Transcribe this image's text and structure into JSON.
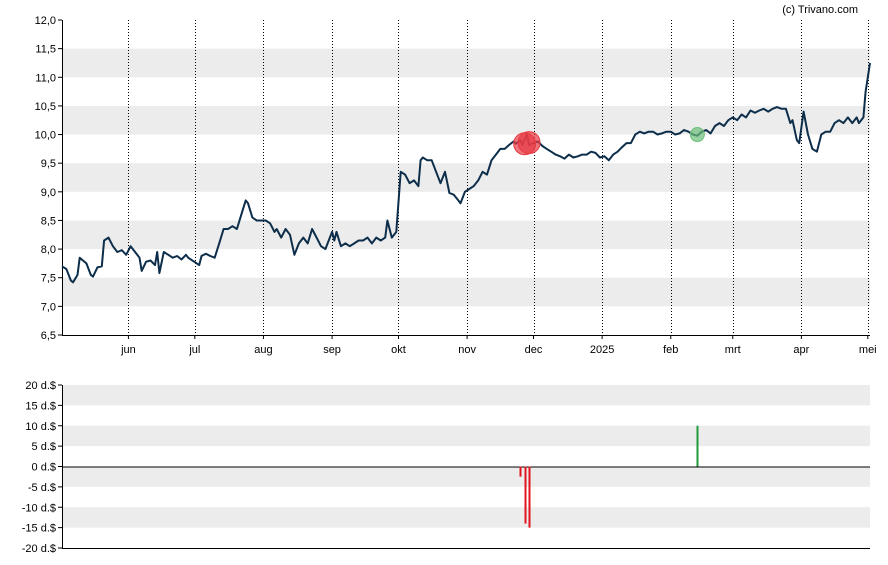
{
  "credit": "(c) Trivano.com",
  "colors": {
    "line": "#0d2e4a",
    "band": "#ececec",
    "buy": "#1e9a3a",
    "sell": "#e0141e",
    "buy_marker": "#6cbf7a",
    "sell_marker": "#e83a45"
  },
  "chart_data": [
    {
      "type": "line",
      "title": "",
      "ylim": [
        6.5,
        12.0
      ],
      "yticks": [
        "12,0",
        "11,5",
        "11,0",
        "10,5",
        "10,0",
        "9,5",
        "9,0",
        "8,5",
        "8,0",
        "7,5",
        "7,0",
        "6,5"
      ],
      "ytick_values": [
        12.0,
        11.5,
        11.0,
        10.5,
        10.0,
        9.5,
        9.0,
        8.5,
        8.0,
        7.5,
        7.0,
        6.5
      ],
      "xticks": [
        "jun",
        "jul",
        "aug",
        "sep",
        "okt",
        "nov",
        "dec",
        "2025",
        "feb",
        "mrt",
        "apr",
        "mei"
      ],
      "xtick_dates": [
        "2024-06-01",
        "2024-07-01",
        "2024-08-01",
        "2024-09-01",
        "2024-10-01",
        "2024-11-01",
        "2024-12-01",
        "2025-01-01",
        "2025-02-01",
        "2025-03-01",
        "2025-04-01",
        "2025-05-01"
      ],
      "x_range": [
        "2024-05-02",
        "2025-05-02"
      ],
      "grid": "vertical dotted at month ticks, alternating horizontal bands",
      "series": [
        {
          "points": [
            [
              "2024-05-02",
              7.7
            ],
            [
              "2024-05-04",
              7.65
            ],
            [
              "2024-05-06",
              7.45
            ],
            [
              "2024-05-07",
              7.42
            ],
            [
              "2024-05-09",
              7.55
            ],
            [
              "2024-05-10",
              7.85
            ],
            [
              "2024-05-13",
              7.75
            ],
            [
              "2024-05-15",
              7.55
            ],
            [
              "2024-05-16",
              7.52
            ],
            [
              "2024-05-18",
              7.68
            ],
            [
              "2024-05-20",
              7.7
            ],
            [
              "2024-05-21",
              8.15
            ],
            [
              "2024-05-23",
              8.2
            ],
            [
              "2024-05-25",
              8.05
            ],
            [
              "2024-05-27",
              7.95
            ],
            [
              "2024-05-29",
              7.98
            ],
            [
              "2024-05-31",
              7.9
            ],
            [
              "2024-06-02",
              8.05
            ],
            [
              "2024-06-04",
              7.95
            ],
            [
              "2024-06-06",
              7.85
            ],
            [
              "2024-06-07",
              7.62
            ],
            [
              "2024-06-09",
              7.78
            ],
            [
              "2024-06-11",
              7.8
            ],
            [
              "2024-06-13",
              7.72
            ],
            [
              "2024-06-14",
              7.95
            ],
            [
              "2024-06-15",
              7.58
            ],
            [
              "2024-06-17",
              7.95
            ],
            [
              "2024-06-19",
              7.9
            ],
            [
              "2024-06-21",
              7.85
            ],
            [
              "2024-06-23",
              7.88
            ],
            [
              "2024-06-25",
              7.82
            ],
            [
              "2024-06-27",
              7.9
            ],
            [
              "2024-06-28",
              7.85
            ],
            [
              "2024-07-03",
              7.72
            ],
            [
              "2024-07-04",
              7.88
            ],
            [
              "2024-07-06",
              7.92
            ],
            [
              "2024-07-08",
              7.88
            ],
            [
              "2024-07-10",
              7.85
            ],
            [
              "2024-07-12",
              8.1
            ],
            [
              "2024-07-14",
              8.35
            ],
            [
              "2024-07-16",
              8.35
            ],
            [
              "2024-07-18",
              8.4
            ],
            [
              "2024-07-20",
              8.35
            ],
            [
              "2024-07-22",
              8.6
            ],
            [
              "2024-07-24",
              8.85
            ],
            [
              "2024-07-25",
              8.8
            ],
            [
              "2024-07-27",
              8.55
            ],
            [
              "2024-07-29",
              8.5
            ],
            [
              "2024-07-31",
              8.5
            ],
            [
              "2024-08-02",
              8.5
            ],
            [
              "2024-08-04",
              8.45
            ],
            [
              "2024-08-06",
              8.3
            ],
            [
              "2024-08-07",
              8.35
            ],
            [
              "2024-08-09",
              8.2
            ],
            [
              "2024-08-11",
              8.35
            ],
            [
              "2024-08-13",
              8.25
            ],
            [
              "2024-08-15",
              7.9
            ],
            [
              "2024-08-17",
              8.1
            ],
            [
              "2024-08-19",
              8.2
            ],
            [
              "2024-08-21",
              8.1
            ],
            [
              "2024-08-23",
              8.35
            ],
            [
              "2024-08-25",
              8.2
            ],
            [
              "2024-08-27",
              8.05
            ],
            [
              "2024-08-29",
              8.0
            ],
            [
              "2024-08-30",
              8.1
            ],
            [
              "2024-09-01",
              8.3
            ],
            [
              "2024-09-02",
              8.15
            ],
            [
              "2024-09-03",
              8.3
            ],
            [
              "2024-09-05",
              8.05
            ],
            [
              "2024-09-07",
              8.1
            ],
            [
              "2024-09-09",
              8.05
            ],
            [
              "2024-09-11",
              8.1
            ],
            [
              "2024-09-13",
              8.15
            ],
            [
              "2024-09-15",
              8.15
            ],
            [
              "2024-09-17",
              8.2
            ],
            [
              "2024-09-19",
              8.1
            ],
            [
              "2024-09-21",
              8.2
            ],
            [
              "2024-09-23",
              8.15
            ],
            [
              "2024-09-25",
              8.2
            ],
            [
              "2024-09-26",
              8.5
            ],
            [
              "2024-09-28",
              8.2
            ],
            [
              "2024-09-30",
              8.3
            ],
            [
              "2024-10-02",
              9.35
            ],
            [
              "2024-10-04",
              9.3
            ],
            [
              "2024-10-06",
              9.15
            ],
            [
              "2024-10-08",
              9.2
            ],
            [
              "2024-10-10",
              9.1
            ],
            [
              "2024-10-11",
              9.55
            ],
            [
              "2024-10-12",
              9.6
            ],
            [
              "2024-10-14",
              9.55
            ],
            [
              "2024-10-16",
              9.55
            ],
            [
              "2024-10-18",
              9.35
            ],
            [
              "2024-10-20",
              9.15
            ],
            [
              "2024-10-22",
              9.35
            ],
            [
              "2024-10-24",
              8.98
            ],
            [
              "2024-10-26",
              8.95
            ],
            [
              "2024-10-28",
              8.85
            ],
            [
              "2024-10-29",
              8.8
            ],
            [
              "2024-10-31",
              9.0
            ],
            [
              "2024-11-02",
              9.05
            ],
            [
              "2024-11-04",
              9.1
            ],
            [
              "2024-11-06",
              9.2
            ],
            [
              "2024-11-08",
              9.35
            ],
            [
              "2024-11-10",
              9.3
            ],
            [
              "2024-11-12",
              9.55
            ],
            [
              "2024-11-14",
              9.65
            ],
            [
              "2024-11-16",
              9.75
            ],
            [
              "2024-11-18",
              9.75
            ],
            [
              "2024-11-20",
              9.82
            ],
            [
              "2024-11-22",
              9.88
            ],
            [
              "2024-11-23",
              9.84
            ],
            [
              "2024-11-25",
              9.9
            ],
            [
              "2024-11-26",
              9.82
            ],
            [
              "2024-11-28",
              10.0
            ],
            [
              "2024-11-29",
              9.82
            ],
            [
              "2024-12-01",
              9.85
            ],
            [
              "2024-12-03",
              9.88
            ],
            [
              "2024-12-05",
              9.8
            ],
            [
              "2024-12-07",
              9.75
            ],
            [
              "2024-12-09",
              9.7
            ],
            [
              "2024-12-11",
              9.65
            ],
            [
              "2024-12-13",
              9.62
            ],
            [
              "2024-12-15",
              9.58
            ],
            [
              "2024-12-17",
              9.65
            ],
            [
              "2024-12-19",
              9.6
            ],
            [
              "2024-12-21",
              9.62
            ],
            [
              "2024-12-23",
              9.65
            ],
            [
              "2024-12-25",
              9.65
            ],
            [
              "2024-12-27",
              9.7
            ],
            [
              "2024-12-29",
              9.68
            ],
            [
              "2024-12-31",
              9.6
            ],
            [
              "2025-01-02",
              9.62
            ],
            [
              "2025-01-04",
              9.55
            ],
            [
              "2025-01-06",
              9.65
            ],
            [
              "2025-01-08",
              9.7
            ],
            [
              "2025-01-10",
              9.78
            ],
            [
              "2025-01-12",
              9.85
            ],
            [
              "2025-01-14",
              9.85
            ],
            [
              "2025-01-16",
              10.0
            ],
            [
              "2025-01-18",
              10.05
            ],
            [
              "2025-01-20",
              10.02
            ],
            [
              "2025-01-22",
              10.05
            ],
            [
              "2025-01-24",
              10.05
            ],
            [
              "2025-01-26",
              10.0
            ],
            [
              "2025-01-28",
              10.02
            ],
            [
              "2025-01-30",
              10.05
            ],
            [
              "2025-02-01",
              10.05
            ],
            [
              "2025-02-03",
              10.0
            ],
            [
              "2025-02-05",
              10.02
            ],
            [
              "2025-02-07",
              10.08
            ],
            [
              "2025-02-09",
              10.05
            ],
            [
              "2025-02-11",
              10.0
            ],
            [
              "2025-02-13",
              9.98
            ],
            [
              "2025-02-15",
              10.05
            ],
            [
              "2025-02-17",
              10.08
            ],
            [
              "2025-02-19",
              10.02
            ],
            [
              "2025-02-21",
              10.15
            ],
            [
              "2025-02-23",
              10.2
            ],
            [
              "2025-02-25",
              10.15
            ],
            [
              "2025-02-27",
              10.25
            ],
            [
              "2025-03-01",
              10.3
            ],
            [
              "2025-03-03",
              10.25
            ],
            [
              "2025-03-05",
              10.35
            ],
            [
              "2025-03-07",
              10.3
            ],
            [
              "2025-03-09",
              10.42
            ],
            [
              "2025-03-11",
              10.38
            ],
            [
              "2025-03-13",
              10.42
            ],
            [
              "2025-03-15",
              10.45
            ],
            [
              "2025-03-17",
              10.4
            ],
            [
              "2025-03-19",
              10.45
            ],
            [
              "2025-03-21",
              10.48
            ],
            [
              "2025-03-23",
              10.45
            ],
            [
              "2025-03-25",
              10.45
            ],
            [
              "2025-03-27",
              10.2
            ],
            [
              "2025-03-28",
              10.25
            ],
            [
              "2025-03-30",
              9.9
            ],
            [
              "2025-03-31",
              9.85
            ],
            [
              "2025-04-02",
              10.4
            ],
            [
              "2025-04-04",
              10.0
            ],
            [
              "2025-04-06",
              9.75
            ],
            [
              "2025-04-08",
              9.7
            ],
            [
              "2025-04-10",
              10.0
            ],
            [
              "2025-04-12",
              10.05
            ],
            [
              "2025-04-14",
              10.05
            ],
            [
              "2025-04-16",
              10.2
            ],
            [
              "2025-04-18",
              10.25
            ],
            [
              "2025-04-20",
              10.2
            ],
            [
              "2025-04-22",
              10.3
            ],
            [
              "2025-04-24",
              10.2
            ],
            [
              "2025-04-26",
              10.3
            ],
            [
              "2025-04-27",
              10.2
            ],
            [
              "2025-04-29",
              10.3
            ],
            [
              "2025-04-30",
              10.75
            ],
            [
              "2025-05-02",
              11.25
            ]
          ]
        }
      ],
      "markers": [
        {
          "kind": "sell",
          "date": "2024-11-27",
          "value": 9.84
        },
        {
          "kind": "sell",
          "date": "2024-11-29",
          "value": 9.86
        },
        {
          "kind": "buy",
          "date": "2025-02-13",
          "value": 10.0
        }
      ]
    },
    {
      "type": "bar",
      "title": "",
      "ylim": [
        -20,
        20
      ],
      "yticks": [
        "20 d.$",
        "15 d.$",
        "10 d.$",
        "5 d.$",
        "0 d.$",
        "-5 d.$",
        "-10 d.$",
        "-15 d.$",
        "-20 d.$"
      ],
      "ytick_values": [
        20,
        15,
        10,
        5,
        0,
        -5,
        -10,
        -15,
        -20
      ],
      "bars": [
        {
          "date": "2024-11-25",
          "value": -2.5,
          "kind": "sell"
        },
        {
          "date": "2024-11-27",
          "value": -14.0,
          "kind": "sell"
        },
        {
          "date": "2024-11-29",
          "value": -15.0,
          "kind": "sell"
        },
        {
          "date": "2025-02-13",
          "value": 10.0,
          "kind": "buy"
        }
      ]
    }
  ]
}
